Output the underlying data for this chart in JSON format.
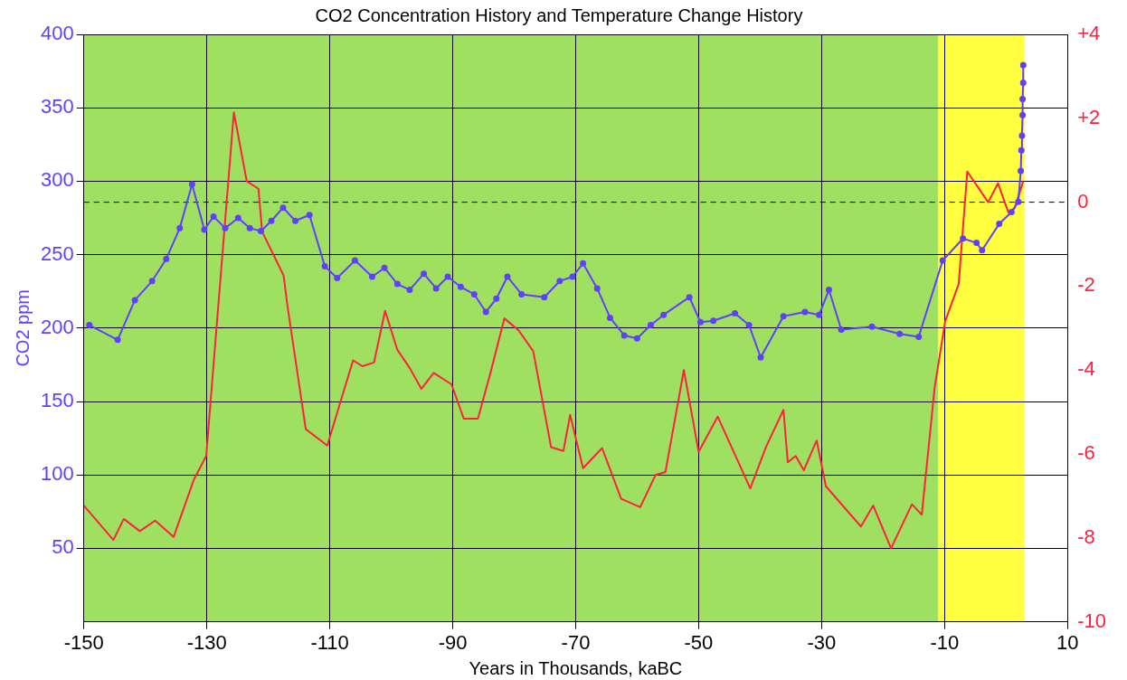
{
  "chart_data": {
    "type": "line",
    "title": "CO2 Concentration History and Temperature Change History",
    "xlabel": "Years in Thousands, kaBC",
    "ylabel": "CO2 ppm",
    "xlim": [
      -150,
      10
    ],
    "xticks": [
      -150,
      -130,
      -110,
      -90,
      -70,
      -50,
      -30,
      -10,
      10
    ],
    "ylim": [
      0,
      400
    ],
    "yticks": [
      50,
      100,
      150,
      200,
      250,
      300,
      350,
      400
    ],
    "y2lim": [
      -10,
      4
    ],
    "y2ticks": [
      {
        "value": 4,
        "label": "+4"
      },
      {
        "value": 2,
        "label": "+2"
      },
      0,
      -2,
      -4,
      -6,
      -8,
      -10
    ],
    "grid": true,
    "bands": [
      {
        "axis": "x",
        "from": -150,
        "to": -11,
        "color": "#a0e060"
      },
      {
        "axis": "x",
        "from": -11,
        "to": 3,
        "color": "#ffff40"
      }
    ],
    "ref_lines": [
      {
        "axis": "y2",
        "value": 0,
        "color": "#000000",
        "line_style": "dashed"
      }
    ],
    "series": [
      {
        "color": "#6040ff",
        "marker": "circle",
        "x": [
          -149.1,
          -144.5,
          -141.7,
          -138.9,
          -136.6,
          -134.4,
          -132.4,
          -130.4,
          -128.9,
          -127,
          -124.9,
          -123,
          -121.2,
          -119.5,
          -117.6,
          -115.6,
          -113.3,
          -110.8,
          -108.8,
          -105.9,
          -103.1,
          -101.1,
          -99,
          -97,
          -94.7,
          -92.7,
          -90.8,
          -88.7,
          -86.5,
          -84.6,
          -82.9,
          -81.1,
          -78.8,
          -75.1,
          -72.6,
          -70.5,
          -68.8,
          -66.5,
          -64.4,
          -62.1,
          -60,
          -57.8,
          -55.7,
          -51.5,
          -49.7,
          -47.6,
          -44.1,
          -41.8,
          -39.9,
          -36.2,
          -32.7,
          -30.4,
          -28.8,
          -26.8,
          -21.8,
          -17.3,
          -14.2,
          -10.3,
          -7,
          -4.8,
          -3.9,
          -1.1,
          0.9,
          2,
          2.4,
          2.5,
          2.6,
          2.7,
          2.7,
          2.8,
          2.8
        ],
        "values": [
          202,
          192,
          219,
          232,
          247,
          268,
          298,
          267,
          276,
          268,
          275,
          268,
          266,
          273,
          282,
          273,
          277,
          242,
          234,
          246,
          235,
          241,
          230,
          226,
          237,
          227,
          235,
          228,
          223,
          211,
          220,
          235,
          223,
          221,
          232,
          235,
          244,
          227,
          207,
          195,
          193,
          202,
          209,
          221,
          204,
          205,
          210,
          202,
          180,
          208,
          211,
          209,
          226,
          199,
          201,
          196,
          194,
          246,
          261,
          258,
          253,
          271,
          279,
          286,
          307,
          321,
          331,
          345,
          356,
          367,
          379
        ]
      },
      {
        "color": "#ff2040",
        "axis": "y2",
        "marker": "none",
        "x": [
          -150,
          -145.2,
          -143.5,
          -140.9,
          -138.4,
          -135.4,
          -132.1,
          -130.1,
          -125.6,
          -123.5,
          -121.6,
          -121,
          -117.5,
          -116.9,
          -113.9,
          -110.4,
          -108.2,
          -106.2,
          -104.7,
          -102.8,
          -101,
          -99,
          -97,
          -95.1,
          -93.1,
          -90.2,
          -88.2,
          -85.9,
          -83.9,
          -81.6,
          -79.3,
          -76.9,
          -74,
          -72,
          -70.9,
          -68.8,
          -65.7,
          -62.6,
          -59.5,
          -57,
          -55.4,
          -52.4,
          -50,
          -46.9,
          -41.6,
          -39,
          -36.2,
          -35.5,
          -34.2,
          -32.9,
          -30.8,
          -29.3,
          -23.6,
          -21.6,
          -18.7,
          -15.3,
          -13.7,
          -11.6,
          -9.9,
          -7.7,
          -6.3,
          -2.9,
          -1.3,
          0.4,
          1.4,
          2.8
        ],
        "values": [
          -7.23,
          -8.05,
          -7.55,
          -7.84,
          -7.59,
          -7.98,
          -6.61,
          -6.05,
          2.14,
          0.5,
          0.32,
          -0.7,
          -1.75,
          -2.45,
          -5.41,
          -5.8,
          -4.73,
          -3.77,
          -3.91,
          -3.82,
          -2.59,
          -3.52,
          -3.95,
          -4.45,
          -4.07,
          -4.34,
          -5.16,
          -5.16,
          -4.09,
          -2.77,
          -3.05,
          -3.55,
          -5.84,
          -5.93,
          -5.07,
          -6.34,
          -5.86,
          -7.07,
          -7.27,
          -6.5,
          -6.43,
          -4,
          -5.95,
          -5.11,
          -6.82,
          -5.82,
          -4.95,
          -6.2,
          -6.05,
          -6.39,
          -5.68,
          -6.77,
          -7.73,
          -7.23,
          -8.25,
          -7.2,
          -7.45,
          -4.41,
          -2.84,
          -1.95,
          0.73,
          0,
          0.45,
          -0.25,
          -0.14,
          0.5
        ]
      }
    ]
  }
}
